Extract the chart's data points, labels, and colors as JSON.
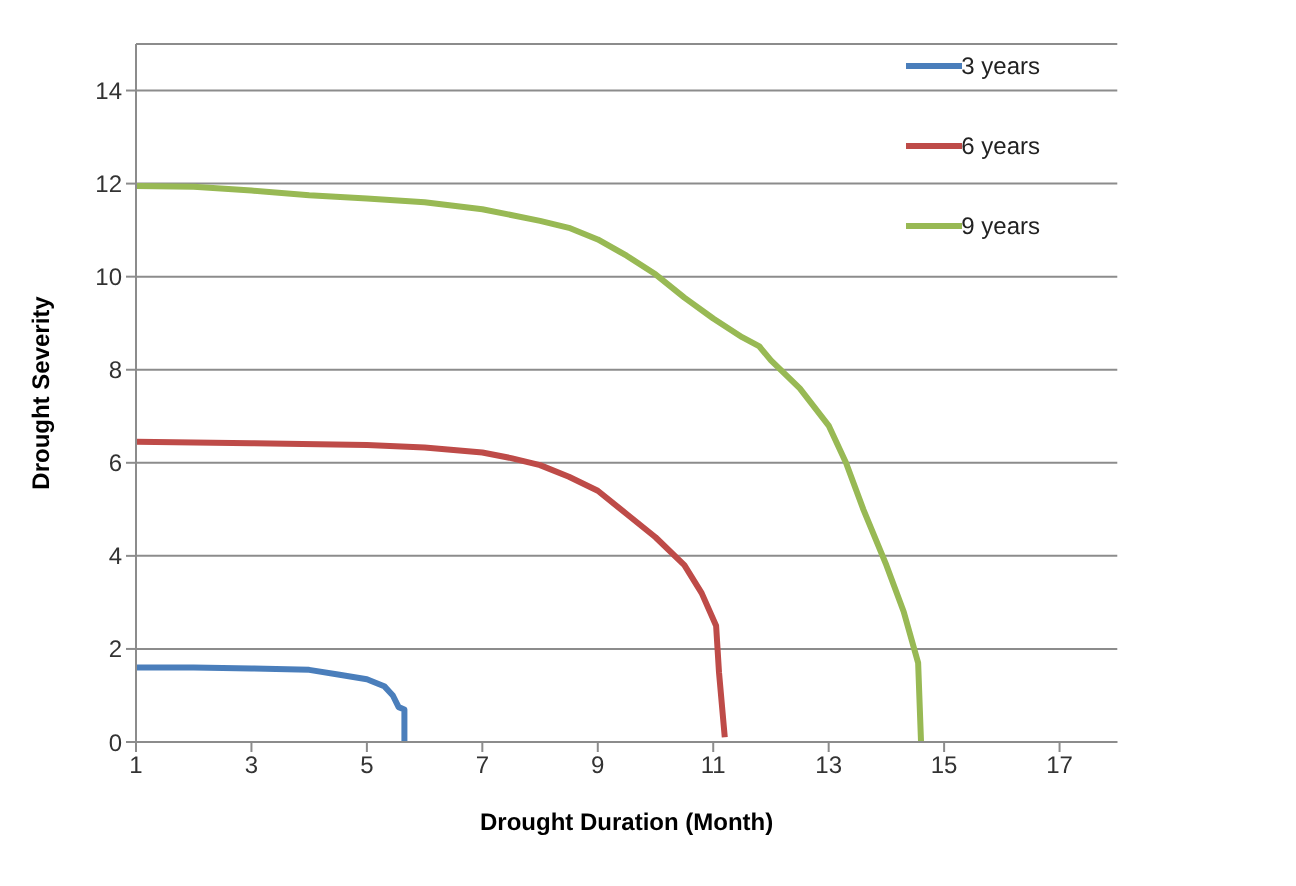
{
  "chart_data": {
    "type": "line",
    "xlabel": "Drought Duration (Month)",
    "ylabel": "Drought Severity",
    "xlim": [
      1,
      18
    ],
    "xticks": [
      1,
      3,
      5,
      7,
      9,
      11,
      13,
      15,
      17
    ],
    "ylim": [
      0,
      15
    ],
    "yticks": [
      0,
      2,
      4,
      6,
      8,
      10,
      12,
      14
    ],
    "grid": "y",
    "legend": "top right",
    "marker": "none",
    "line_style": "solid",
    "series": [
      {
        "name": "3 years",
        "color": "#4a7ebb",
        "x": [
          1,
          2,
          3,
          4,
          4.5,
          5,
          5.3,
          5.45,
          5.55,
          5.65,
          5.65
        ],
        "values": [
          1.6,
          1.6,
          1.58,
          1.55,
          1.45,
          1.35,
          1.2,
          1.0,
          0.75,
          0.7,
          0
        ]
      },
      {
        "name": "6 years",
        "color": "#be4b48",
        "x": [
          1,
          3,
          5,
          6,
          7,
          7.5,
          8,
          8.5,
          9,
          9.5,
          10,
          10.5,
          10.8,
          11.05,
          11.1,
          11.2
        ],
        "values": [
          6.45,
          6.42,
          6.38,
          6.33,
          6.22,
          6.1,
          5.95,
          5.7,
          5.4,
          4.9,
          4.4,
          3.8,
          3.2,
          2.5,
          1.5,
          0.1
        ]
      },
      {
        "name": "9 years",
        "color": "#98b954",
        "x": [
          1,
          2,
          3,
          4,
          5,
          6,
          7,
          8,
          8.5,
          9,
          9.5,
          10,
          10.5,
          11,
          11.5,
          11.8,
          12,
          12.5,
          13,
          13.3,
          13.6,
          14,
          14.3,
          14.55,
          14.6
        ],
        "values": [
          11.95,
          11.93,
          11.85,
          11.75,
          11.68,
          11.6,
          11.45,
          11.2,
          11.05,
          10.8,
          10.45,
          10.05,
          9.55,
          9.1,
          8.7,
          8.5,
          8.2,
          7.6,
          6.8,
          6,
          5,
          3.8,
          2.8,
          1.7,
          0
        ]
      }
    ]
  }
}
